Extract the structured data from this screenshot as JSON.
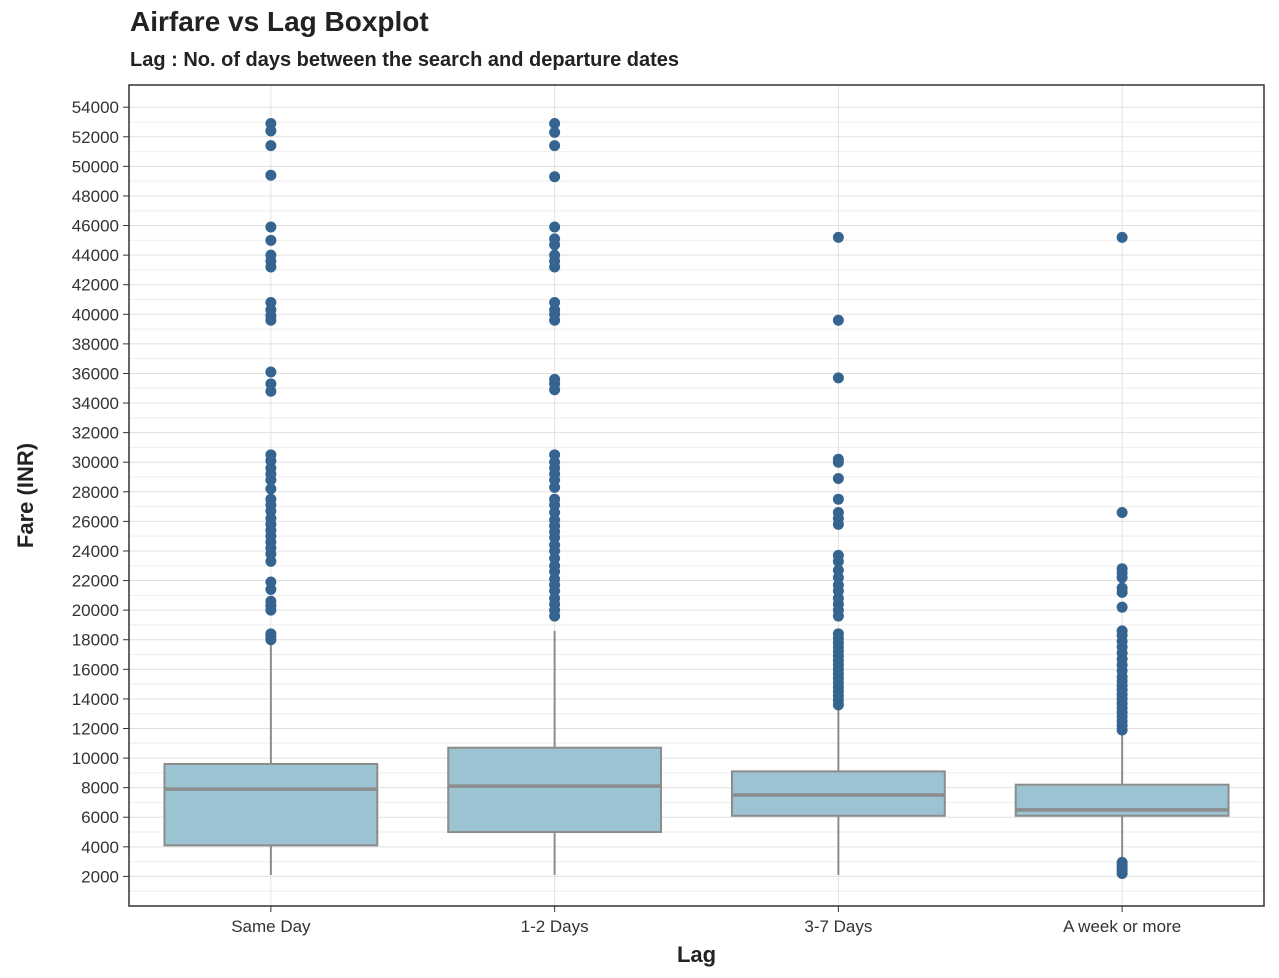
{
  "chart_data": {
    "type": "boxplot",
    "title": "Airfare vs Lag Boxplot",
    "subtitle": "Lag : No. of days between the search and departure dates",
    "xlabel": "Lag",
    "ylabel": "Fare (INR)",
    "ylim": [
      0,
      55500
    ],
    "yticks": [
      2000,
      4000,
      6000,
      8000,
      10000,
      12000,
      14000,
      16000,
      18000,
      20000,
      22000,
      24000,
      26000,
      28000,
      30000,
      32000,
      34000,
      36000,
      38000,
      40000,
      42000,
      44000,
      46000,
      48000,
      50000,
      52000,
      54000
    ],
    "grid": true,
    "categories": [
      "Same Day",
      "1-2 Days",
      "3-7 Days",
      "A week or more"
    ],
    "boxes": [
      {
        "category": "Same Day",
        "whisker_low": 2100,
        "q1": 4100,
        "median": 7900,
        "q3": 9600,
        "whisker_high": 17800,
        "outliers": [
          18000,
          18200,
          18400,
          20000,
          20300,
          20600,
          21400,
          21900,
          23300,
          23800,
          24200,
          24600,
          25000,
          25400,
          25800,
          26200,
          26700,
          27100,
          27500,
          28200,
          28800,
          29200,
          29600,
          30100,
          30500,
          34800,
          35300,
          36100,
          39600,
          39900,
          40300,
          40800,
          43200,
          43600,
          44000,
          45000,
          45900,
          49400,
          51400,
          52400,
          52900
        ]
      },
      {
        "category": "1-2 Days",
        "whisker_low": 2100,
        "q1": 5000,
        "median": 8100,
        "q3": 10700,
        "whisker_high": 18600,
        "outliers": [
          19600,
          20000,
          20400,
          20800,
          21300,
          21700,
          22100,
          22600,
          23000,
          23500,
          24000,
          24400,
          24900,
          25300,
          25700,
          26100,
          26600,
          27100,
          27500,
          28300,
          28800,
          29200,
          29600,
          30000,
          30500,
          34900,
          35300,
          35600,
          39600,
          40000,
          40300,
          40800,
          43200,
          43600,
          44000,
          44700,
          45100,
          45900,
          49300,
          51400,
          52300,
          52900
        ]
      },
      {
        "category": "3-7 Days",
        "whisker_low": 2100,
        "q1": 6100,
        "median": 7500,
        "q3": 9100,
        "whisker_high": 13400,
        "outliers": [
          13600,
          13900,
          14200,
          14500,
          14800,
          15100,
          15400,
          15700,
          16000,
          16300,
          16600,
          16900,
          17200,
          17500,
          17800,
          18100,
          18400,
          19600,
          20000,
          20400,
          20800,
          21300,
          21700,
          22200,
          22700,
          23300,
          23700,
          25800,
          26200,
          26600,
          27500,
          28900,
          30000,
          30200,
          35700,
          39600,
          45200
        ]
      },
      {
        "category": "A week or more",
        "whisker_low": 2100,
        "q1": 6100,
        "median": 6500,
        "q3": 8200,
        "whisker_high": 11800,
        "outliers": [
          2200,
          2400,
          2600,
          2800,
          2950,
          11900,
          12200,
          12500,
          12800,
          13100,
          13400,
          13700,
          14000,
          14300,
          14600,
          14900,
          15200,
          15500,
          15900,
          16300,
          16700,
          17100,
          17500,
          17900,
          18300,
          18600,
          20200,
          21200,
          21500,
          22200,
          22500,
          22800,
          26600,
          45200
        ]
      }
    ],
    "colors": {
      "box_fill": "#9cc3d2",
      "box_stroke": "#8c8c8c",
      "outlier": "#34648f",
      "grid_major": "#e0e0e0",
      "grid_minor": "#eeeeee",
      "panel_border": "#333333"
    }
  }
}
